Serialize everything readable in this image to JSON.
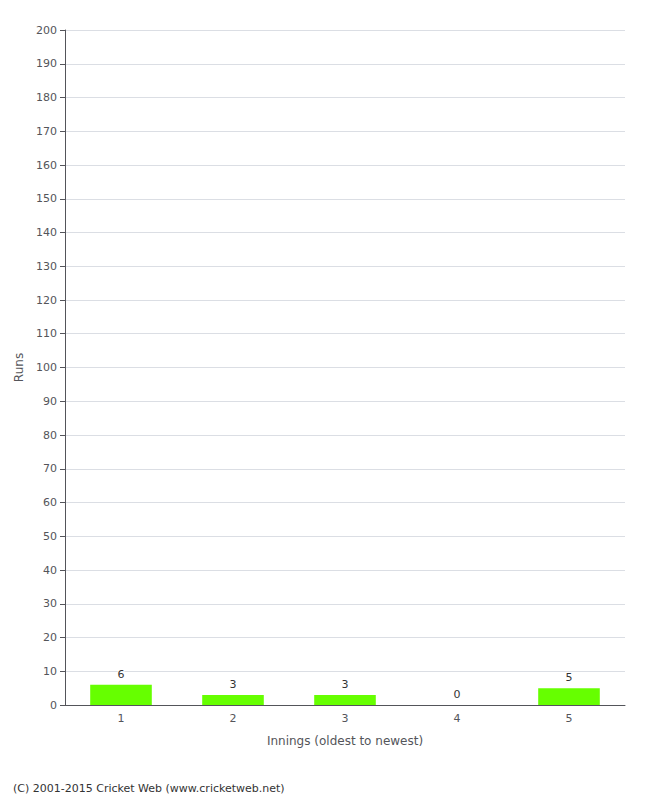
{
  "chart_data": {
    "type": "bar",
    "categories": [
      1,
      2,
      3,
      4,
      5
    ],
    "values": [
      6,
      3,
      3,
      0,
      5
    ],
    "color": "#66ff00",
    "xlabel": "Innings (oldest to newest)",
    "ylabel": "Runs",
    "ylim": [
      0,
      200
    ],
    "yticks": [
      0,
      10,
      20,
      30,
      40,
      50,
      60,
      70,
      80,
      90,
      100,
      110,
      120,
      130,
      140,
      150,
      160,
      170,
      180,
      190,
      200
    ],
    "grid": true,
    "data_labels": true,
    "annotations": [
      "(C) 2001-2015 Cricket Web (www.cricketweb.net)"
    ]
  }
}
